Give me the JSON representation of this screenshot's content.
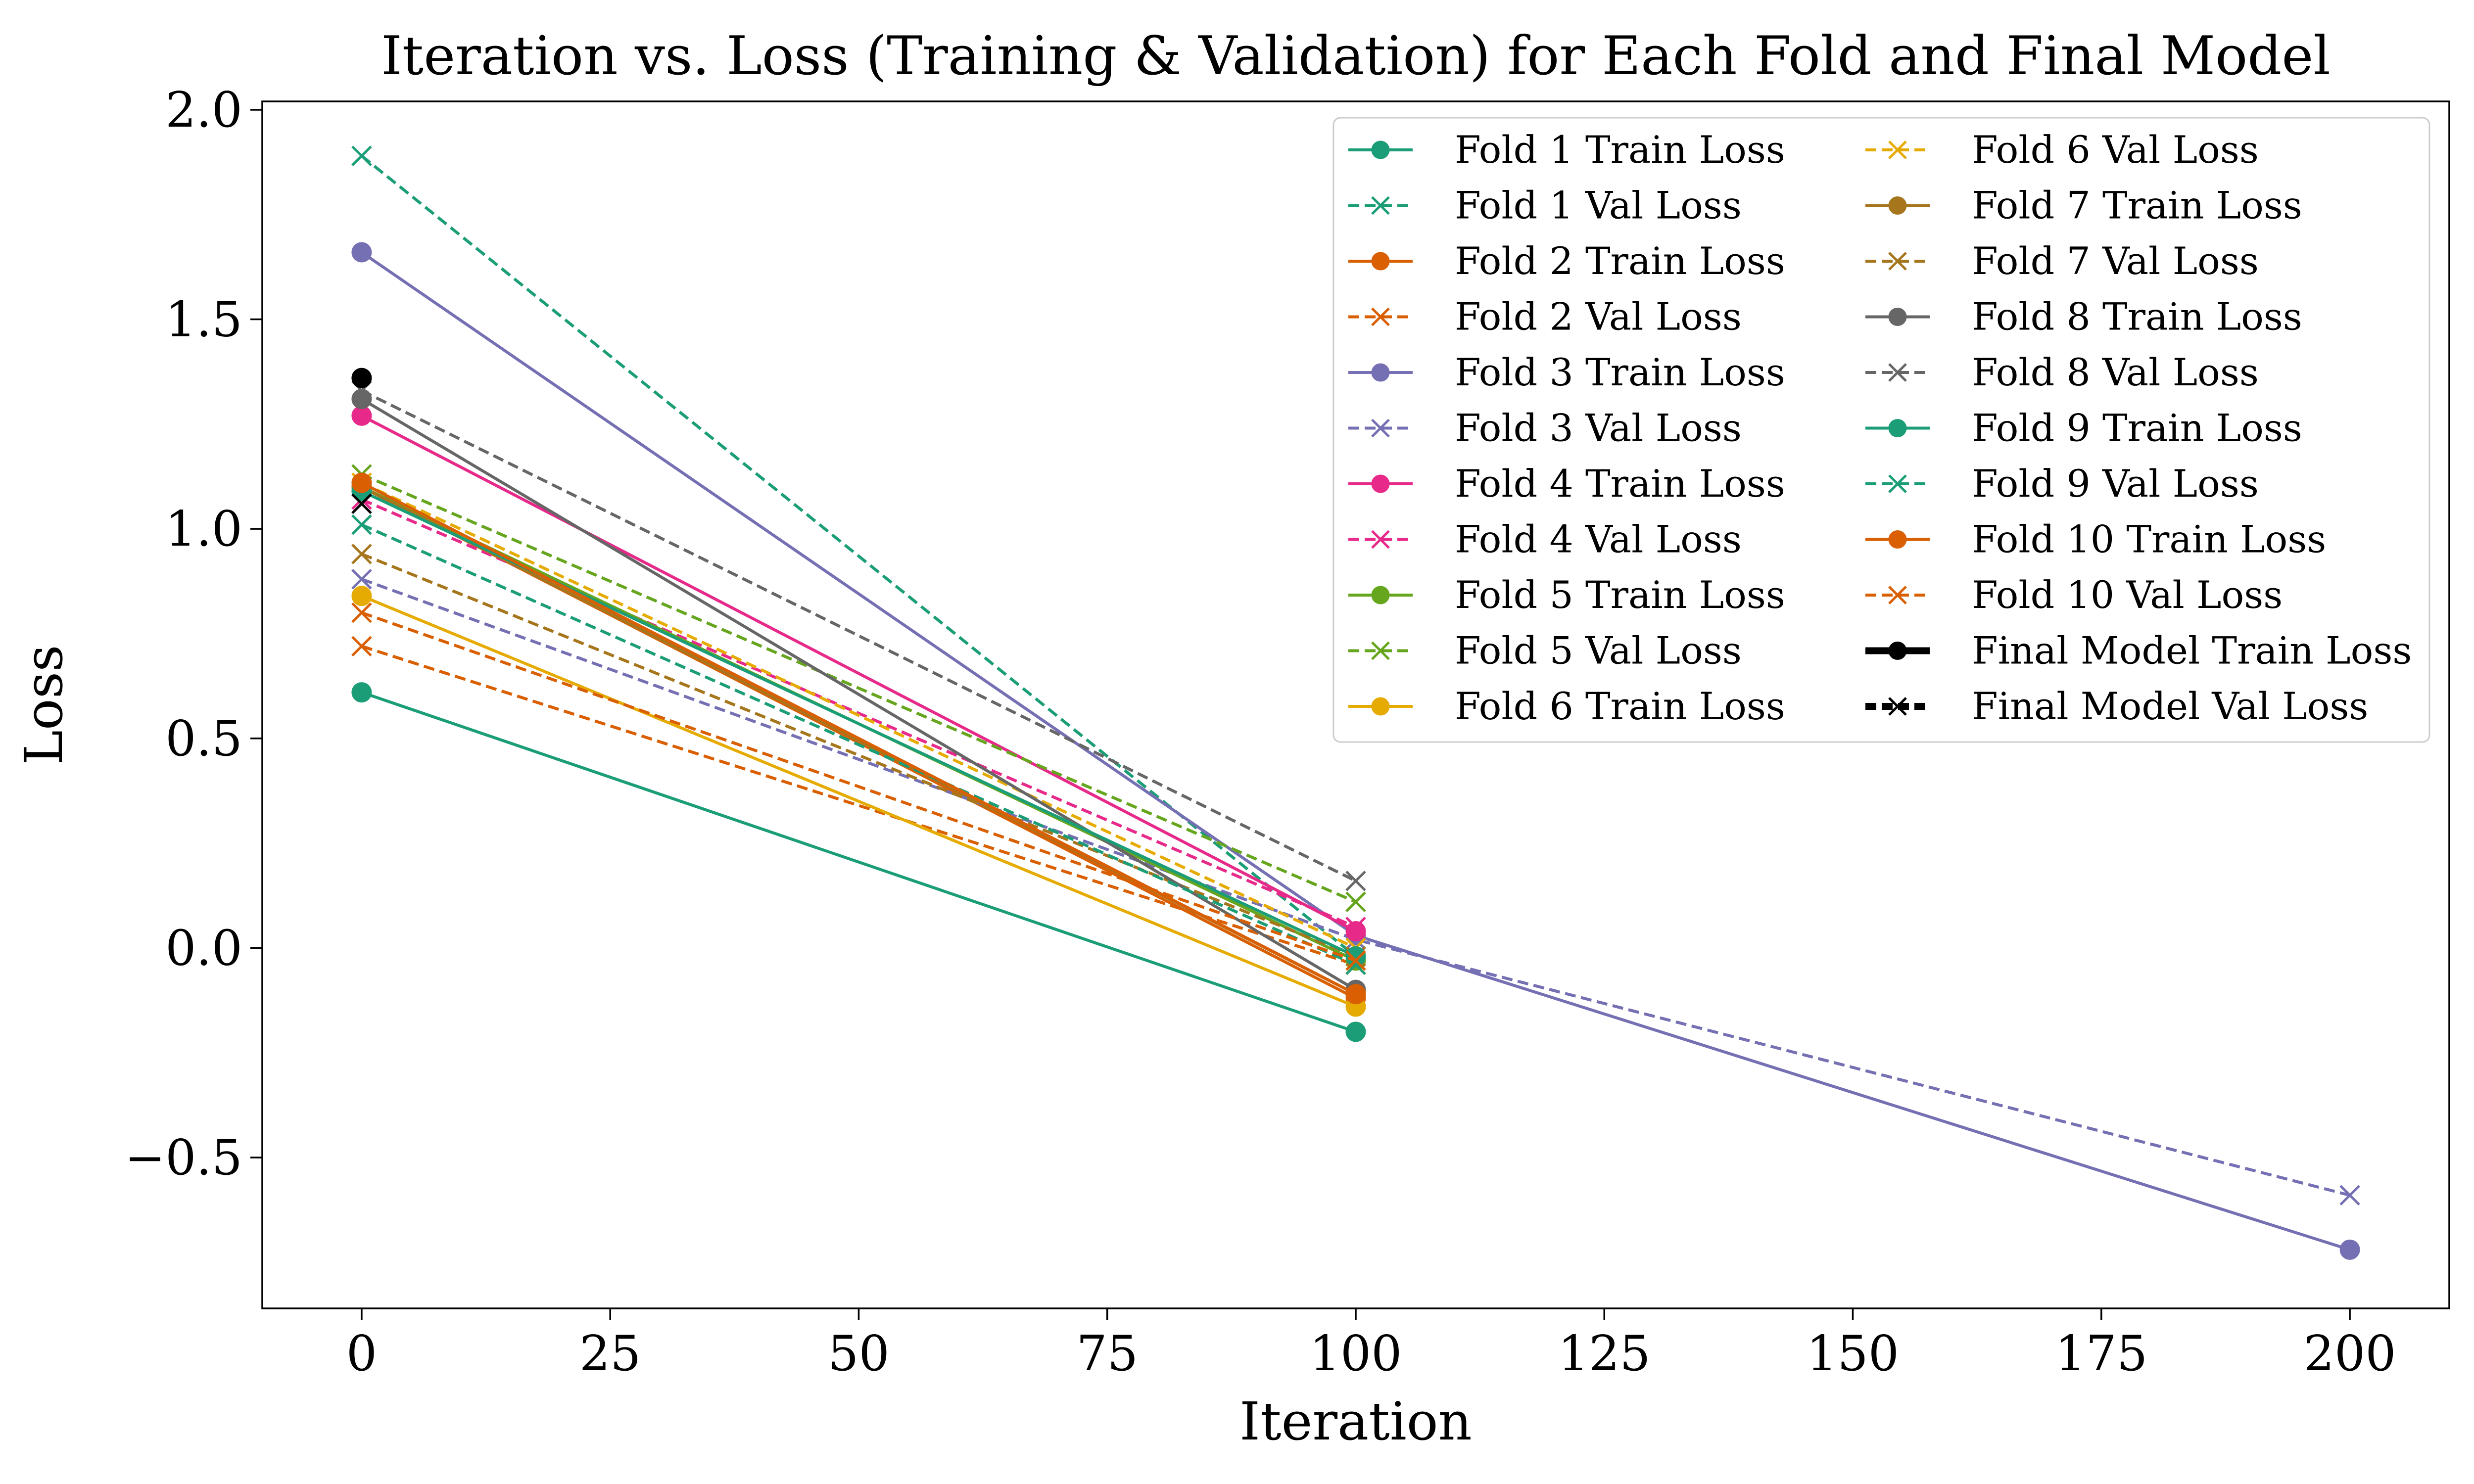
{
  "chart_data": {
    "type": "line",
    "title": "Iteration vs. Loss (Training & Validation) for Each Fold and Final Model",
    "xlabel": "Iteration",
    "ylabel": "Loss",
    "xlim": [
      -10,
      210
    ],
    "ylim": [
      -0.86,
      2.02
    ],
    "xticks": [
      0,
      25,
      50,
      75,
      100,
      125,
      150,
      175,
      200
    ],
    "xtick_labels": [
      "0",
      "25",
      "50",
      "75",
      "100",
      "125",
      "150",
      "175",
      "200"
    ],
    "yticks": [
      -0.5,
      0.0,
      0.5,
      1.0,
      1.5,
      2.0
    ],
    "ytick_labels": [
      "−0.5",
      "0.0",
      "0.5",
      "1.0",
      "1.5",
      "2.0"
    ],
    "grid": false,
    "legend_position": "top-right",
    "legend_columns": 2,
    "series": [
      {
        "name": "Fold 1 Train Loss",
        "kind": "train",
        "color": "#1b9e77",
        "x": [
          0,
          100
        ],
        "y": [
          0.61,
          -0.2
        ]
      },
      {
        "name": "Fold 1 Val Loss",
        "kind": "val",
        "color": "#1b9e77",
        "x": [
          0,
          100
        ],
        "y": [
          1.89,
          -0.02
        ]
      },
      {
        "name": "Fold 2 Train Loss",
        "kind": "train",
        "color": "#d95f02",
        "x": [
          0,
          100
        ],
        "y": [
          1.1,
          -0.12
        ]
      },
      {
        "name": "Fold 2 Val Loss",
        "kind": "val",
        "color": "#d95f02",
        "x": [
          0,
          100
        ],
        "y": [
          0.72,
          -0.04
        ]
      },
      {
        "name": "Fold 3 Train Loss",
        "kind": "train",
        "color": "#7570b3",
        "x": [
          0,
          100,
          200
        ],
        "y": [
          1.66,
          0.03,
          -0.72
        ]
      },
      {
        "name": "Fold 3 Val Loss",
        "kind": "val",
        "color": "#7570b3",
        "x": [
          0,
          100,
          200
        ],
        "y": [
          0.88,
          0.02,
          -0.59
        ]
      },
      {
        "name": "Fold 4 Train Loss",
        "kind": "train",
        "color": "#e7298a",
        "x": [
          0,
          100
        ],
        "y": [
          1.27,
          0.04
        ]
      },
      {
        "name": "Fold 4 Val Loss",
        "kind": "val",
        "color": "#e7298a",
        "x": [
          0,
          100
        ],
        "y": [
          1.07,
          0.05
        ]
      },
      {
        "name": "Fold 5 Train Loss",
        "kind": "train",
        "color": "#66a61e",
        "x": [
          0,
          100
        ],
        "y": [
          1.1,
          -0.03
        ]
      },
      {
        "name": "Fold 5 Val Loss",
        "kind": "val",
        "color": "#66a61e",
        "x": [
          0,
          100
        ],
        "y": [
          1.13,
          0.11
        ]
      },
      {
        "name": "Fold 6 Train Loss",
        "kind": "train",
        "color": "#e6ab02",
        "x": [
          0,
          100
        ],
        "y": [
          0.84,
          -0.14
        ]
      },
      {
        "name": "Fold 6 Val Loss",
        "kind": "val",
        "color": "#e6ab02",
        "x": [
          0,
          100
        ],
        "y": [
          1.11,
          0.0
        ]
      },
      {
        "name": "Fold 7 Train Loss",
        "kind": "train",
        "color": "#a6761d",
        "x": [
          0,
          100
        ],
        "y": [
          1.1,
          -0.11
        ]
      },
      {
        "name": "Fold 7 Val Loss",
        "kind": "val",
        "color": "#a6761d",
        "x": [
          0,
          100
        ],
        "y": [
          0.94,
          -0.02
        ]
      },
      {
        "name": "Fold 8 Train Loss",
        "kind": "train",
        "color": "#666666",
        "x": [
          0,
          100
        ],
        "y": [
          1.31,
          -0.1
        ]
      },
      {
        "name": "Fold 8 Val Loss",
        "kind": "val",
        "color": "#666666",
        "x": [
          0,
          100
        ],
        "y": [
          1.33,
          0.16
        ]
      },
      {
        "name": "Fold 9 Train Loss",
        "kind": "train",
        "color": "#1b9e77",
        "x": [
          0,
          100
        ],
        "y": [
          1.09,
          -0.02
        ]
      },
      {
        "name": "Fold 9 Val Loss",
        "kind": "val",
        "color": "#1b9e77",
        "x": [
          0,
          100
        ],
        "y": [
          1.01,
          -0.04
        ]
      },
      {
        "name": "Fold 10 Train Loss",
        "kind": "train",
        "color": "#d95f02",
        "x": [
          0,
          100
        ],
        "y": [
          1.11,
          -0.11
        ]
      },
      {
        "name": "Fold 10 Val Loss",
        "kind": "val",
        "color": "#d95f02",
        "x": [
          0,
          100
        ],
        "y": [
          0.8,
          -0.03
        ]
      },
      {
        "name": "Final Model Train Loss",
        "kind": "train",
        "final": true,
        "color": "#000000",
        "x": [
          0
        ],
        "y": [
          1.36
        ]
      },
      {
        "name": "Final Model Val Loss",
        "kind": "val",
        "final": true,
        "color": "#000000",
        "x": [
          0
        ],
        "y": [
          1.06
        ]
      }
    ]
  }
}
